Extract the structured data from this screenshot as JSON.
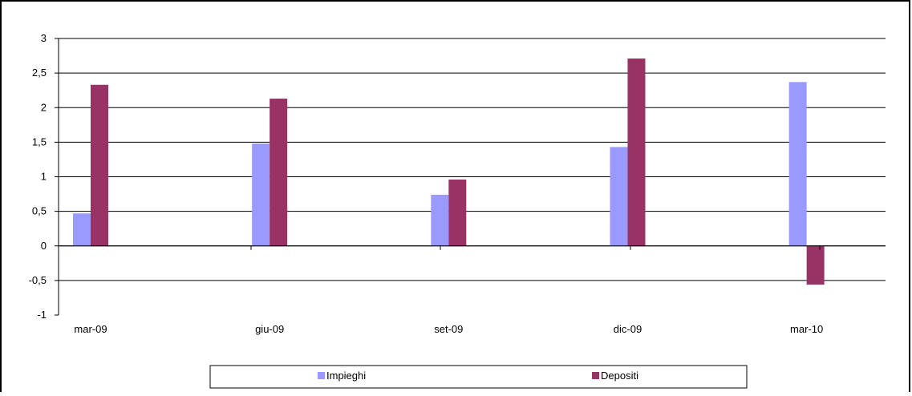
{
  "chart_data": {
    "type": "bar",
    "title": "",
    "xlabel": "",
    "ylabel": "",
    "categories": [
      "mar-09",
      "giu-09",
      "set-09",
      "dic-09",
      "mar-10"
    ],
    "series": [
      {
        "name": "Impieghi",
        "color": "#9999ff",
        "values": [
          0.47,
          1.48,
          0.74,
          1.43,
          2.37
        ]
      },
      {
        "name": "Depositi",
        "color": "#993366",
        "values": [
          2.33,
          2.13,
          0.96,
          2.71,
          -0.56
        ]
      }
    ],
    "ylim": [
      -1,
      3
    ],
    "yticks": [
      3,
      2.5,
      2,
      1.5,
      1,
      0.5,
      0,
      -0.5,
      -1
    ],
    "ytick_labels": [
      "3",
      "2,5",
      "2",
      "1,5",
      "1",
      "0,5",
      "0",
      "-0,5",
      "-1"
    ],
    "grid": true,
    "legend": "bottom"
  }
}
